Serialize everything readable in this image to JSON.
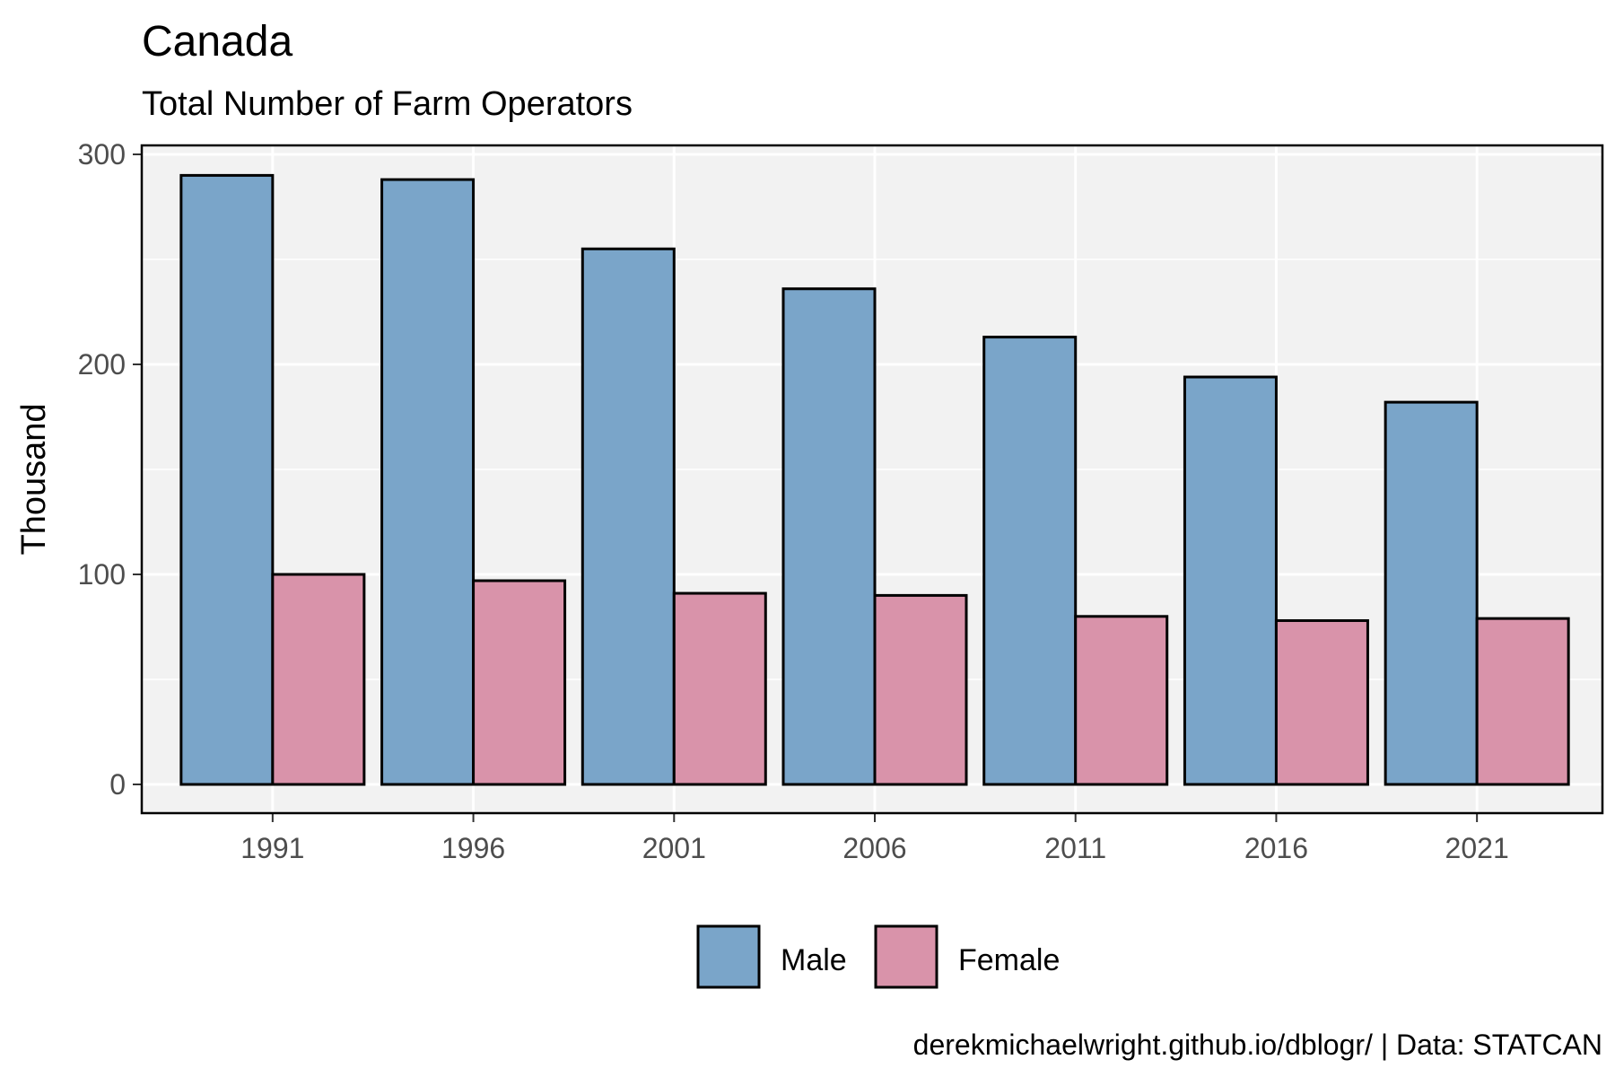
{
  "chart_data": {
    "type": "bar",
    "title": "Canada",
    "subtitle": "Total Number of Farm Operators",
    "xlabel": "",
    "ylabel": "Thousand",
    "categories": [
      "1991",
      "1996",
      "2001",
      "2006",
      "2011",
      "2016",
      "2021"
    ],
    "series": [
      {
        "name": "Male",
        "color": "#7aa5c9",
        "values": [
          290,
          288,
          255,
          236,
          213,
          194,
          182
        ]
      },
      {
        "name": "Female",
        "color": "#d993aa",
        "values": [
          100,
          97,
          91,
          90,
          80,
          78,
          79
        ]
      }
    ],
    "ylim": [
      0,
      300
    ],
    "yticks": [
      "0",
      "100",
      "200",
      "300"
    ],
    "grid": true,
    "legend_position": "bottom",
    "caption": "derekmichaelwright.github.io/dblogr/ | Data: STATCAN"
  }
}
